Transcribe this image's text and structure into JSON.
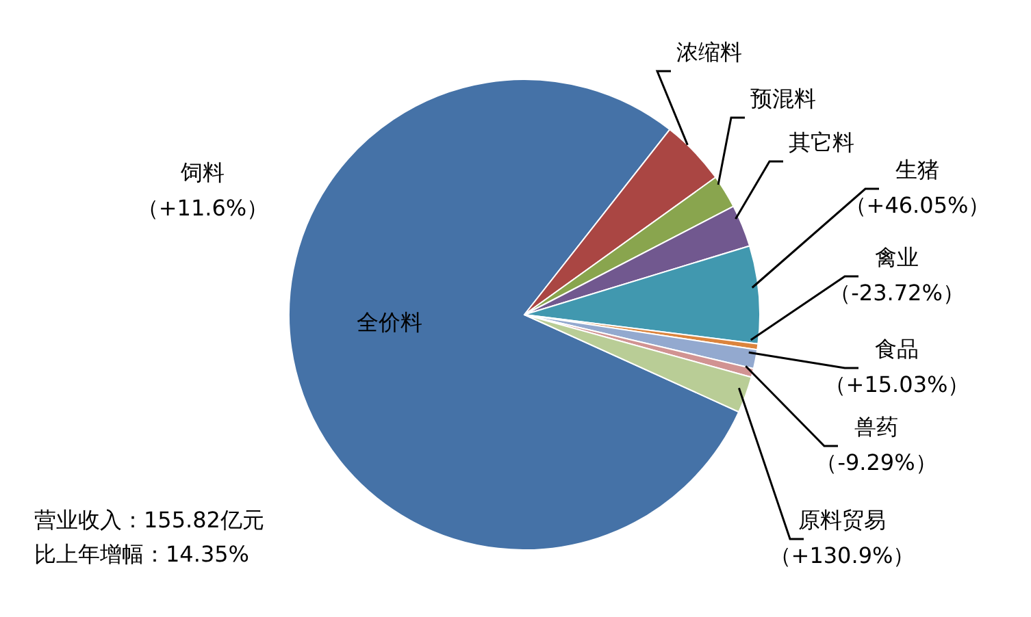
{
  "chart_data": {
    "type": "pie",
    "categories": [
      "全价料",
      "浓缩料",
      "预混料",
      "其它料",
      "生猪（+46.05%）",
      "禽业（-23.72%）",
      "食品（+15.03%）",
      "兽药（-9.29%）",
      "原料贸易（+130.9%）"
    ],
    "values": [
      78.8,
      4.5,
      2.3,
      2.9,
      6.7,
      0.4,
      1.3,
      0.6,
      2.5
    ],
    "colors": [
      "#4572a7",
      "#aa4643",
      "#89a54e",
      "#71588f",
      "#4198af",
      "#db843d",
      "#93a9cf",
      "#d19392",
      "#b9cd96"
    ],
    "annotations": [
      "饲料（+11.6%）",
      "营业收入：155.82亿元",
      "比上年增幅：14.35%"
    ],
    "legend": false
  }
}
